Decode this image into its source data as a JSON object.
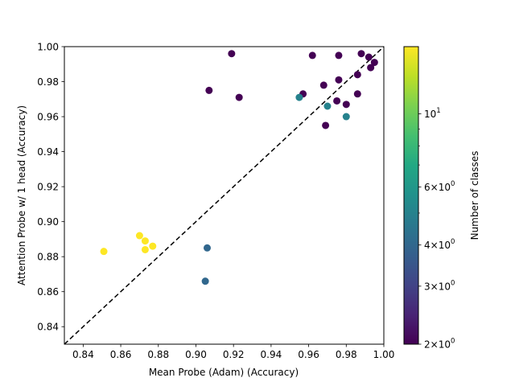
{
  "chart_data": {
    "type": "scatter",
    "xlabel": "Mean Probe (Adam) (Accuracy)",
    "ylabel": "Attention Probe w/ 1 head (Accuracy)",
    "xlim": [
      0.83,
      1.0
    ],
    "ylim": [
      0.83,
      1.0
    ],
    "xticks": [
      "0.84",
      "0.86",
      "0.88",
      "0.90",
      "0.92",
      "0.94",
      "0.96",
      "0.98",
      "1.00"
    ],
    "yticks": [
      "0.84",
      "0.86",
      "0.88",
      "0.90",
      "0.92",
      "0.94",
      "0.96",
      "0.98",
      "1.00"
    ],
    "grid": false,
    "reference_line": {
      "style": "dashed",
      "color": "#000000",
      "from": [
        0.83,
        0.83
      ],
      "to": [
        1.0,
        1.0
      ]
    },
    "colorbar": {
      "label": "Number of classes",
      "scale": "log",
      "colormap": "viridis",
      "range": [
        2,
        16
      ],
      "ticks": [
        {
          "value": 2,
          "base": "2",
          "exp": "0"
        },
        {
          "value": 3,
          "base": "3",
          "exp": "0"
        },
        {
          "value": 4,
          "base": "4",
          "exp": "0"
        },
        {
          "value": 6,
          "base": "6",
          "exp": "0"
        },
        {
          "value": 10,
          "base": "10",
          "exp": "1"
        }
      ],
      "mark_prefix": "×10"
    },
    "points": [
      {
        "x": 0.919,
        "y": 0.996,
        "classes": 2
      },
      {
        "x": 0.962,
        "y": 0.995,
        "classes": 2
      },
      {
        "x": 0.976,
        "y": 0.995,
        "classes": 2
      },
      {
        "x": 0.988,
        "y": 0.996,
        "classes": 2
      },
      {
        "x": 0.992,
        "y": 0.994,
        "classes": 2
      },
      {
        "x": 0.995,
        "y": 0.991,
        "classes": 2
      },
      {
        "x": 0.993,
        "y": 0.988,
        "classes": 2
      },
      {
        "x": 0.976,
        "y": 0.981,
        "classes": 2
      },
      {
        "x": 0.968,
        "y": 0.978,
        "classes": 2
      },
      {
        "x": 0.907,
        "y": 0.975,
        "classes": 2
      },
      {
        "x": 0.923,
        "y": 0.971,
        "classes": 2
      },
      {
        "x": 0.957,
        "y": 0.973,
        "classes": 2
      },
      {
        "x": 0.986,
        "y": 0.973,
        "classes": 2
      },
      {
        "x": 0.975,
        "y": 0.969,
        "classes": 2
      },
      {
        "x": 0.98,
        "y": 0.967,
        "classes": 2
      },
      {
        "x": 0.969,
        "y": 0.955,
        "classes": 2
      },
      {
        "x": 0.986,
        "y": 0.984,
        "classes": 2
      },
      {
        "x": 0.955,
        "y": 0.971,
        "classes": 5
      },
      {
        "x": 0.97,
        "y": 0.966,
        "classes": 5
      },
      {
        "x": 0.98,
        "y": 0.96,
        "classes": 5
      },
      {
        "x": 0.906,
        "y": 0.885,
        "classes": 4
      },
      {
        "x": 0.905,
        "y": 0.866,
        "classes": 4
      },
      {
        "x": 0.851,
        "y": 0.883,
        "classes": 16
      },
      {
        "x": 0.87,
        "y": 0.892,
        "classes": 16
      },
      {
        "x": 0.873,
        "y": 0.889,
        "classes": 16
      },
      {
        "x": 0.877,
        "y": 0.886,
        "classes": 16
      },
      {
        "x": 0.873,
        "y": 0.884,
        "classes": 16
      }
    ]
  }
}
